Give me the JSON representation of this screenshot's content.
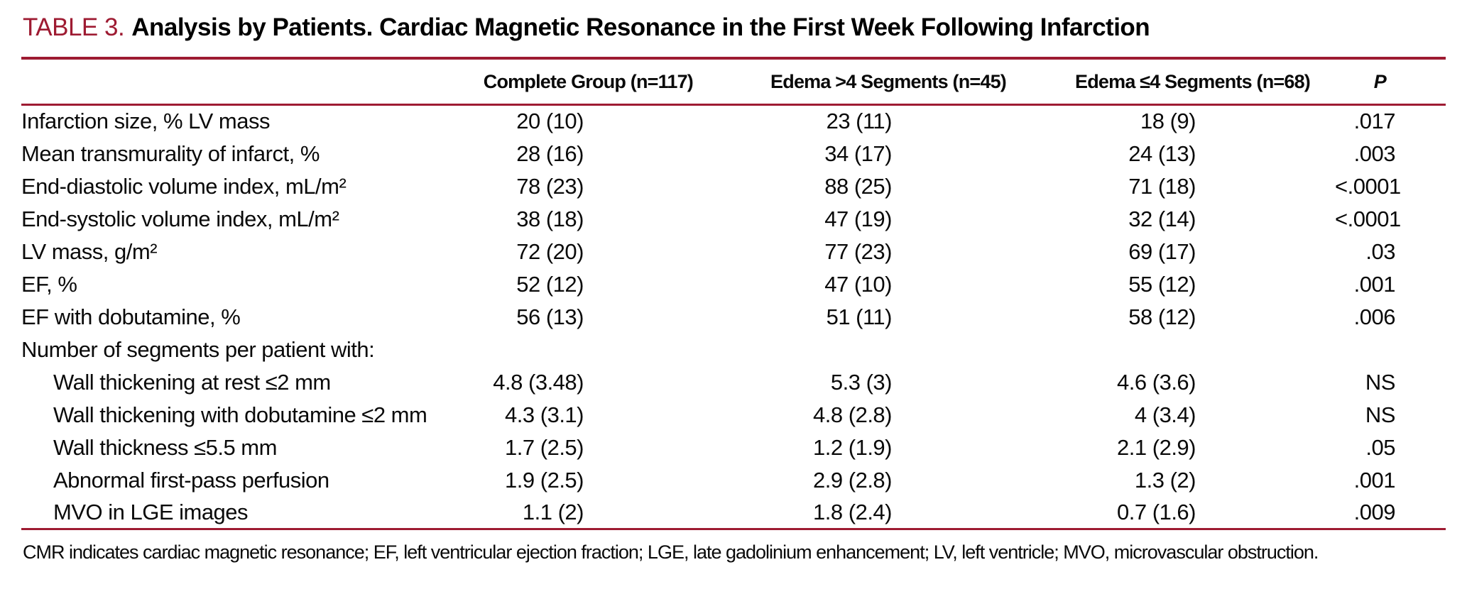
{
  "accent_color": "#9e1b32",
  "heading": {
    "label": "TABLE 3.",
    "title": "Analysis by Patients. Cardiac Magnetic Resonance in the First Week Following Infarction"
  },
  "table": {
    "columns": [
      "",
      "Complete Group (n=117)",
      "Edema >4 Segments (n=45)",
      "Edema ≤4 Segments (n=68)",
      "P"
    ],
    "rows": [
      {
        "label": "Infarction size, % LV mass",
        "indent": false,
        "values": [
          "20 (10)",
          "23 (11)",
          "18 (9)",
          ".017"
        ]
      },
      {
        "label": "Mean transmurality of infarct, %",
        "indent": false,
        "values": [
          "28 (16)",
          "34 (17)",
          "24 (13)",
          ".003"
        ]
      },
      {
        "label": "End-diastolic volume index, mL/m²",
        "indent": false,
        "values": [
          "78 (23)",
          "88 (25)",
          "71 (18)",
          "<.0001"
        ]
      },
      {
        "label": "End-systolic volume index, mL/m²",
        "indent": false,
        "values": [
          "38 (18)",
          "47 (19)",
          "32 (14)",
          "<.0001"
        ]
      },
      {
        "label": "LV mass, g/m²",
        "indent": false,
        "values": [
          "72 (20)",
          "77 (23)",
          "69 (17)",
          ".03"
        ]
      },
      {
        "label": "EF, %",
        "indent": false,
        "values": [
          "52 (12)",
          "47 (10)",
          "55 (12)",
          ".001"
        ]
      },
      {
        "label": "EF with dobutamine, %",
        "indent": false,
        "values": [
          "56 (13)",
          "51 (11)",
          "58 (12)",
          ".006"
        ]
      },
      {
        "label": "Number of segments per patient with:",
        "indent": false,
        "section": true,
        "values": [
          "",
          "",
          "",
          ""
        ]
      },
      {
        "label": "Wall thickening at rest ≤2 mm",
        "indent": true,
        "values": [
          "4.8 (3.48)",
          "5.3 (3)",
          "4.6 (3.6)",
          "NS"
        ]
      },
      {
        "label": "Wall thickening with dobutamine ≤2 mm",
        "indent": true,
        "values": [
          "4.3 (3.1)",
          "4.8 (2.8)",
          "4 (3.4)",
          "NS"
        ]
      },
      {
        "label": "Wall thickness ≤5.5 mm",
        "indent": true,
        "values": [
          "1.7 (2.5)",
          "1.2 (1.9)",
          "2.1 (2.9)",
          ".05"
        ]
      },
      {
        "label": "Abnormal first-pass perfusion",
        "indent": true,
        "values": [
          "1.9 (2.5)",
          "2.9 (2.8)",
          "1.3 (2)",
          ".001"
        ]
      },
      {
        "label": "MVO in LGE images",
        "indent": true,
        "values": [
          "1.1 (2)",
          "1.8 (2.4)",
          "0.7 (1.6)",
          ".009"
        ]
      }
    ]
  },
  "footnote": "CMR indicates cardiac magnetic resonance; EF, left ventricular ejection fraction; LGE, late gadolinium enhancement; LV, left ventricle; MVO, microvascular obstruction."
}
